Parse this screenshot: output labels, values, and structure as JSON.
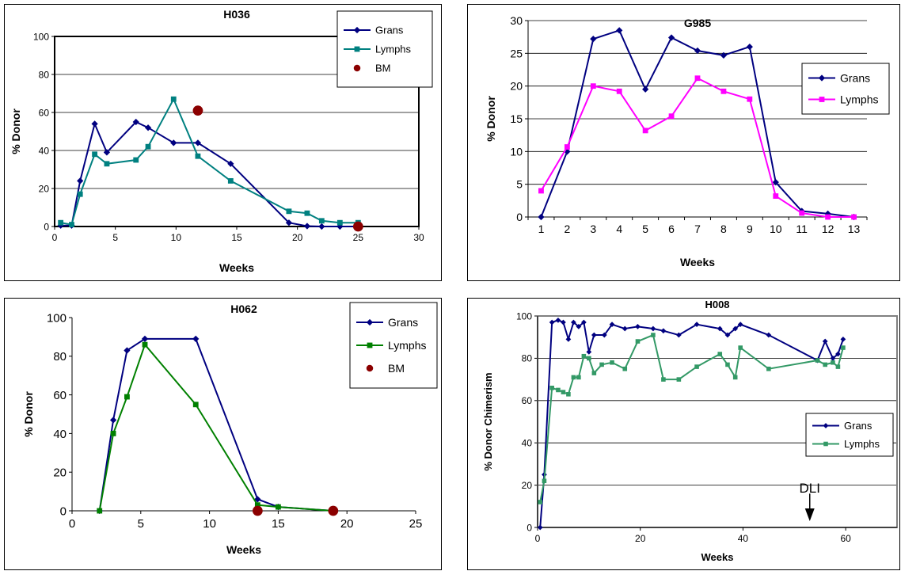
{
  "chart_data": [
    {
      "type": "line",
      "title": "H036",
      "xlabel": "Weeks",
      "ylabel": "% Donor",
      "xlim": [
        0,
        30
      ],
      "ylim": [
        0,
        100
      ],
      "xticks": [
        "0",
        "5",
        "10",
        "15",
        "20",
        "25",
        "30"
      ],
      "yticks": [
        "0",
        "20",
        "40",
        "60",
        "80",
        "100"
      ],
      "grid": true,
      "legend": "top-right",
      "series": [
        {
          "name": "Grans",
          "color": "#000080",
          "marker": "diamond",
          "line": true,
          "points": [
            [
              0.5,
              0.5
            ],
            [
              1.4,
              0.5
            ],
            [
              2.1,
              24
            ],
            [
              3.3,
              54
            ],
            [
              4.3,
              39
            ],
            [
              6.7,
              55
            ],
            [
              7.7,
              52
            ],
            [
              9.8,
              44
            ],
            [
              11.8,
              44
            ],
            [
              14.5,
              33
            ],
            [
              19.3,
              2
            ],
            [
              20.8,
              0.2
            ],
            [
              22,
              0
            ],
            [
              23.5,
              0
            ],
            [
              25,
              0
            ]
          ]
        },
        {
          "name": "Lymphs",
          "color": "#008080",
          "marker": "square",
          "line": true,
          "points": [
            [
              0.5,
              2
            ],
            [
              1.4,
              1
            ],
            [
              2.1,
              17
            ],
            [
              3.3,
              38
            ],
            [
              4.3,
              33
            ],
            [
              6.7,
              35
            ],
            [
              7.7,
              42
            ],
            [
              9.8,
              67
            ],
            [
              11.8,
              37
            ],
            [
              14.5,
              24
            ],
            [
              19.3,
              8
            ],
            [
              20.8,
              7
            ],
            [
              22,
              3
            ],
            [
              23.5,
              2
            ],
            [
              25,
              2
            ]
          ]
        },
        {
          "name": "BM",
          "color": "#8b0000",
          "marker": "circle",
          "line": false,
          "points": [
            [
              11.8,
              61
            ],
            [
              25,
              0
            ]
          ]
        }
      ]
    },
    {
      "type": "line",
      "title": "G985",
      "xlabel": "Weeks",
      "ylabel": "% Donor",
      "categories": [
        "1",
        "2",
        "3",
        "4",
        "5",
        "6",
        "7",
        "8",
        "9",
        "10",
        "11",
        "12",
        "13"
      ],
      "ylim": [
        0,
        30
      ],
      "yticks": [
        "0",
        "5",
        "10",
        "15",
        "20",
        "25",
        "30"
      ],
      "grid": true,
      "legend": "right",
      "series": [
        {
          "name": "Grans",
          "color": "#000080",
          "marker": "diamond",
          "line": true,
          "values": [
            0,
            10,
            27.2,
            28.5,
            19.5,
            27.4,
            25.4,
            24.7,
            26,
            5.3,
            0.9,
            0.5,
            0
          ]
        },
        {
          "name": "Lymphs",
          "color": "#ff00ff",
          "marker": "square",
          "line": true,
          "values": [
            4,
            10.7,
            20,
            19.2,
            13.2,
            15.4,
            21.2,
            19.2,
            18,
            3.2,
            0.6,
            0,
            0
          ]
        }
      ]
    },
    {
      "type": "line",
      "title": "H062",
      "xlabel": "Weeks",
      "ylabel": "% Donor",
      "xlim": [
        0,
        25
      ],
      "ylim": [
        0,
        100
      ],
      "xticks": [
        "0",
        "5",
        "10",
        "15",
        "20",
        "25"
      ],
      "yticks": [
        "0",
        "20",
        "40",
        "60",
        "80",
        "100"
      ],
      "grid": false,
      "legend": "top-right",
      "series": [
        {
          "name": "Grans",
          "color": "#000080",
          "marker": "diamond",
          "line": true,
          "points": [
            [
              2,
              0
            ],
            [
              3,
              47
            ],
            [
              4,
              83
            ],
            [
              5.3,
              89
            ],
            [
              9,
              89
            ],
            [
              13.5,
              6
            ],
            [
              15,
              2
            ],
            [
              19,
              0
            ]
          ]
        },
        {
          "name": "Lymphs",
          "color": "#008000",
          "marker": "square",
          "line": true,
          "points": [
            [
              2,
              0
            ],
            [
              3,
              40
            ],
            [
              4,
              59
            ],
            [
              5.3,
              86
            ],
            [
              9,
              55
            ],
            [
              13.5,
              3
            ],
            [
              15,
              2
            ],
            [
              19,
              0
            ]
          ]
        },
        {
          "name": "BM",
          "color": "#8b0000",
          "marker": "circle",
          "line": false,
          "points": [
            [
              13.5,
              0
            ],
            [
              19,
              0
            ]
          ]
        }
      ]
    },
    {
      "type": "line",
      "title": "H008",
      "xlabel": "Weeks",
      "ylabel": "% Donor Chimerism",
      "xlim": [
        0,
        70
      ],
      "ylim": [
        0,
        100
      ],
      "xticks": [
        "0",
        "20",
        "40",
        "60"
      ],
      "yticks": [
        "0",
        "20",
        "40",
        "60",
        "80",
        "100"
      ],
      "grid": true,
      "legend": "right",
      "annotation": {
        "text": "DLI",
        "x": 53,
        "arrow": "down"
      },
      "series": [
        {
          "name": "Grans",
          "color": "#000080",
          "marker": "diamond",
          "line": true,
          "points": [
            [
              0.5,
              0
            ],
            [
              1.3,
              25
            ],
            [
              2.8,
              97
            ],
            [
              4,
              98
            ],
            [
              5,
              97
            ],
            [
              6,
              89
            ],
            [
              7,
              97
            ],
            [
              8,
              95
            ],
            [
              9,
              97
            ],
            [
              10,
              83
            ],
            [
              11,
              91
            ],
            [
              13,
              91
            ],
            [
              14.5,
              96
            ],
            [
              17,
              94
            ],
            [
              19.5,
              95
            ],
            [
              22.5,
              94
            ],
            [
              24.5,
              93
            ],
            [
              27.5,
              91
            ],
            [
              31,
              96
            ],
            [
              35.5,
              94
            ],
            [
              37,
              91
            ],
            [
              38.5,
              94
            ],
            [
              39.5,
              96
            ],
            [
              45,
              91
            ],
            [
              54.5,
              79
            ],
            [
              56,
              88
            ],
            [
              57.5,
              80
            ],
            [
              58.5,
              82
            ],
            [
              59.5,
              89
            ]
          ]
        },
        {
          "name": "Lymphs",
          "color": "#339966",
          "marker": "square",
          "line": true,
          "points": [
            [
              0.5,
              12
            ],
            [
              1.3,
              22
            ],
            [
              2.8,
              66
            ],
            [
              4,
              65
            ],
            [
              5,
              64
            ],
            [
              6,
              63
            ],
            [
              7,
              71
            ],
            [
              8,
              71
            ],
            [
              9,
              81
            ],
            [
              10,
              80
            ],
            [
              11,
              73
            ],
            [
              12.5,
              77
            ],
            [
              14.5,
              78
            ],
            [
              17,
              75
            ],
            [
              19.5,
              88
            ],
            [
              22.5,
              91
            ],
            [
              24.5,
              70
            ],
            [
              27.5,
              70
            ],
            [
              31,
              76
            ],
            [
              35.5,
              82
            ],
            [
              37,
              77
            ],
            [
              38.5,
              71
            ],
            [
              39.5,
              85
            ],
            [
              45,
              75
            ],
            [
              54.5,
              79
            ],
            [
              56,
              77
            ],
            [
              57.5,
              78
            ],
            [
              58.5,
              76
            ],
            [
              59.5,
              85
            ]
          ]
        }
      ]
    }
  ]
}
